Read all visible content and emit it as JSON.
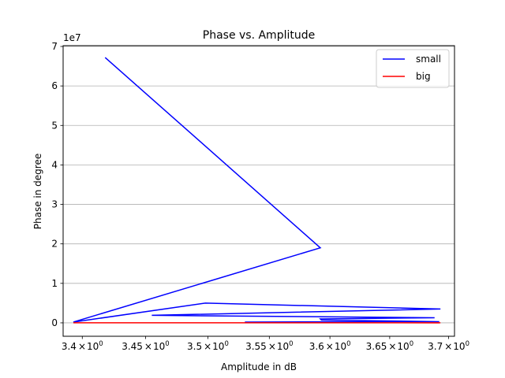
{
  "chart_data": {
    "type": "line",
    "title": "Phase vs. Amplitude",
    "xlabel": "Amplitude in dB",
    "ylabel": "Phase in degree",
    "offset_text": "1e7",
    "x_scale": "log",
    "xlim": [
      3.385,
      3.705
    ],
    "ylim": [
      -3400000,
      70200000
    ],
    "x_ticks": [
      3.4,
      3.45,
      3.5,
      3.55,
      3.6,
      3.65,
      3.7
    ],
    "x_tick_labels": [
      {
        "mantissa": "3.4",
        "times": "×",
        "base": "10",
        "exp": "0"
      },
      {
        "mantissa": "3.45",
        "times": "×",
        "base": "10",
        "exp": "0"
      },
      {
        "mantissa": "3.5",
        "times": "×",
        "base": "10",
        "exp": "0"
      },
      {
        "mantissa": "3.55",
        "times": "×",
        "base": "10",
        "exp": "0"
      },
      {
        "mantissa": "3.6",
        "times": "×",
        "base": "10",
        "exp": "0"
      },
      {
        "mantissa": "3.65",
        "times": "×",
        "base": "10",
        "exp": "0"
      },
      {
        "mantissa": "3.7",
        "times": "×",
        "base": "10",
        "exp": "0"
      }
    ],
    "y_ticks": [
      0,
      10000000,
      20000000,
      30000000,
      40000000,
      50000000,
      60000000,
      70000000
    ],
    "y_tick_labels": [
      "0",
      "1",
      "2",
      "3",
      "4",
      "5",
      "6",
      "7"
    ],
    "grid": "horizontal",
    "legend": "top-right",
    "series": [
      {
        "name": "small",
        "color": "#0000ff",
        "x": [
          3.418,
          3.592,
          3.393,
          3.498,
          3.693,
          3.455,
          3.688,
          3.592,
          3.593,
          3.692,
          3.53,
          3.545
        ],
        "y": [
          67200000,
          19000000,
          200000,
          5000000,
          3500000,
          1900000,
          1300000,
          1000000,
          700000,
          300000,
          200000,
          150000
        ]
      },
      {
        "name": "big",
        "color": "#ff0000",
        "x": [
          3.393,
          3.693,
          3.4,
          3.692
        ],
        "y": [
          20000,
          5000,
          15000,
          2000
        ]
      }
    ]
  }
}
